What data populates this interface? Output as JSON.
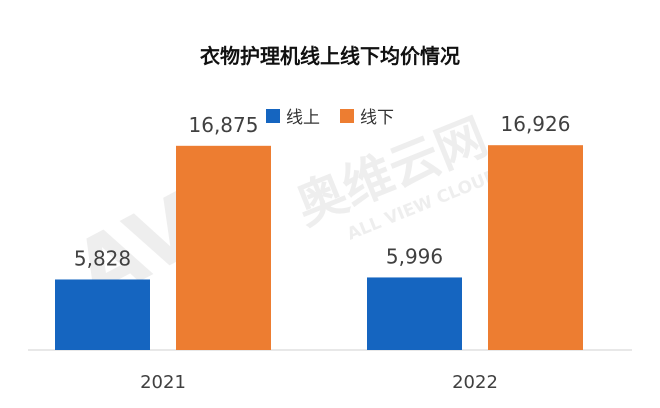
{
  "chart_data": {
    "type": "bar",
    "title": "衣物护理机线上线下均价情况",
    "categories": [
      "2021",
      "2022"
    ],
    "series": [
      {
        "name": "线上",
        "values": [
          5828,
          5996
        ],
        "labels": [
          "5,828",
          "5,996"
        ],
        "color": "#1565C0"
      },
      {
        "name": "线下",
        "values": [
          16875,
          16926
        ],
        "labels": [
          "16,875",
          "16,926"
        ],
        "color": "#ED7D31"
      }
    ],
    "ylim": [
      0,
      20000
    ],
    "grid": false,
    "legend_position": "top-center"
  },
  "watermark": {
    "logo_text": "AVC",
    "brand_cn": "奥维云网",
    "brand_en": "ALL VIEW CLOUD"
  }
}
